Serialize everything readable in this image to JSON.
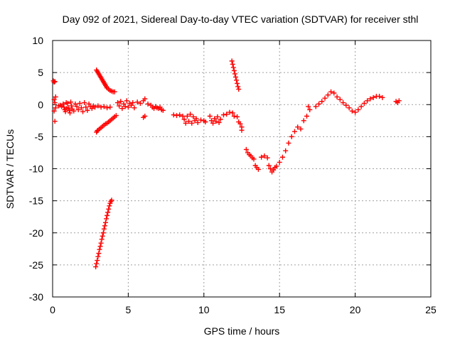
{
  "chart_data": {
    "type": "scatter",
    "title": "Day 092 of 2021, Sidereal Day-to-day VTEC variation (SDTVAR) for receiver sthl",
    "xlabel": "GPS time / hours",
    "ylabel": "SDTVAR / TECUs",
    "xlim": [
      0,
      25
    ],
    "ylim": [
      -30,
      10
    ],
    "xticks": [
      0,
      5,
      10,
      15,
      20,
      25
    ],
    "yticks": [
      -30,
      -25,
      -20,
      -15,
      -10,
      -5,
      0,
      5,
      10
    ],
    "xtick_labels": [
      "0",
      "5",
      "10",
      "15",
      "20",
      "25"
    ],
    "ytick_labels": [
      "-30",
      "-25",
      "-20",
      "-15",
      "-10",
      "-5",
      "0",
      "5",
      "10"
    ],
    "grid": true,
    "marker": "+",
    "color": "#ff0000",
    "series": [
      {
        "name": "SDTVAR",
        "points": [
          [
            0.05,
            3.7
          ],
          [
            0.1,
            3.5
          ],
          [
            0.15,
            3.6
          ],
          [
            0.1,
            0.8
          ],
          [
            0.15,
            0.3
          ],
          [
            0.2,
            -0.5
          ],
          [
            0.1,
            -1.0
          ],
          [
            0.15,
            -2.6
          ],
          [
            0.2,
            1.2
          ],
          [
            0.4,
            -0.2
          ],
          [
            0.5,
            -0.1
          ],
          [
            0.6,
            -0.3
          ],
          [
            0.7,
            0.1
          ],
          [
            0.75,
            -0.4
          ],
          [
            0.8,
            -0.8
          ],
          [
            0.85,
            -1.1
          ],
          [
            0.9,
            0.3
          ],
          [
            0.95,
            -0.6
          ],
          [
            1.0,
            0.2
          ],
          [
            1.05,
            -0.5
          ],
          [
            1.1,
            -0.9
          ],
          [
            1.15,
            -1.3
          ],
          [
            1.2,
            0.4
          ],
          [
            1.25,
            -0.2
          ],
          [
            1.3,
            -0.7
          ],
          [
            1.4,
            -1.0
          ],
          [
            1.5,
            0.1
          ],
          [
            1.6,
            -0.3
          ],
          [
            1.7,
            -0.8
          ],
          [
            1.8,
            0.2
          ],
          [
            1.9,
            -0.5
          ],
          [
            2.0,
            -1.1
          ],
          [
            2.1,
            0.3
          ],
          [
            2.2,
            -0.4
          ],
          [
            2.3,
            -0.9
          ],
          [
            2.4,
            0.1
          ],
          [
            2.5,
            -0.3
          ],
          [
            2.6,
            -0.6
          ],
          [
            2.7,
            -0.2
          ],
          [
            2.8,
            -0.4
          ],
          [
            3.0,
            -0.2
          ],
          [
            3.2,
            -0.4
          ],
          [
            3.4,
            -0.3
          ],
          [
            3.6,
            -0.5
          ],
          [
            3.8,
            -0.4
          ],
          [
            2.9,
            5.4
          ],
          [
            2.95,
            5.2
          ],
          [
            3.0,
            5.0
          ],
          [
            3.05,
            4.8
          ],
          [
            3.1,
            4.6
          ],
          [
            3.15,
            4.4
          ],
          [
            3.2,
            4.2
          ],
          [
            3.25,
            4.0
          ],
          [
            3.3,
            3.8
          ],
          [
            3.35,
            3.6
          ],
          [
            3.4,
            3.4
          ],
          [
            3.45,
            3.2
          ],
          [
            3.5,
            3.0
          ],
          [
            3.55,
            2.8
          ],
          [
            3.6,
            2.6
          ],
          [
            3.7,
            2.4
          ],
          [
            3.8,
            2.2
          ],
          [
            3.9,
            2.1
          ],
          [
            4.0,
            2.0
          ],
          [
            4.1,
            2.0
          ],
          [
            2.9,
            -4.3
          ],
          [
            2.95,
            -4.1
          ],
          [
            3.0,
            -4.0
          ],
          [
            3.1,
            -3.8
          ],
          [
            3.2,
            -3.6
          ],
          [
            3.3,
            -3.4
          ],
          [
            3.4,
            -3.2
          ],
          [
            3.5,
            -3.0
          ],
          [
            3.6,
            -2.9
          ],
          [
            3.7,
            -2.7
          ],
          [
            3.8,
            -2.5
          ],
          [
            3.9,
            -2.3
          ],
          [
            4.0,
            -2.1
          ],
          [
            4.1,
            -1.9
          ],
          [
            4.2,
            -1.7
          ],
          [
            2.85,
            -25.3
          ],
          [
            2.9,
            -24.8
          ],
          [
            2.95,
            -24.3
          ],
          [
            3.0,
            -23.7
          ],
          [
            3.05,
            -23.2
          ],
          [
            3.1,
            -22.6
          ],
          [
            3.15,
            -22.1
          ],
          [
            3.2,
            -21.6
          ],
          [
            3.25,
            -21.0
          ],
          [
            3.3,
            -20.5
          ],
          [
            3.35,
            -20.0
          ],
          [
            3.4,
            -19.4
          ],
          [
            3.45,
            -18.9
          ],
          [
            3.5,
            -18.4
          ],
          [
            3.55,
            -17.8
          ],
          [
            3.6,
            -17.3
          ],
          [
            3.65,
            -16.8
          ],
          [
            3.7,
            -16.3
          ],
          [
            3.75,
            -15.8
          ],
          [
            3.8,
            -15.4
          ],
          [
            3.85,
            -15.1
          ],
          [
            3.9,
            -14.9
          ],
          [
            4.3,
            0.3
          ],
          [
            4.4,
            -0.2
          ],
          [
            4.5,
            0.5
          ],
          [
            4.6,
            -0.6
          ],
          [
            4.7,
            0.1
          ],
          [
            4.8,
            -0.3
          ],
          [
            4.9,
            0.6
          ],
          [
            5.0,
            -0.4
          ],
          [
            5.1,
            0.2
          ],
          [
            5.2,
            -0.1
          ],
          [
            5.3,
            0.3
          ],
          [
            5.4,
            -0.5
          ],
          [
            5.6,
            0.4
          ],
          [
            5.8,
            0.2
          ],
          [
            6.0,
            0.6
          ],
          [
            6.1,
            0.9
          ],
          [
            6.0,
            -2.0
          ],
          [
            6.1,
            -1.8
          ],
          [
            6.3,
            0.1
          ],
          [
            6.5,
            -0.1
          ],
          [
            6.6,
            -0.4
          ],
          [
            6.7,
            -0.6
          ],
          [
            6.8,
            -0.3
          ],
          [
            6.9,
            -0.5
          ],
          [
            7.0,
            -0.6
          ],
          [
            7.1,
            -0.4
          ],
          [
            7.2,
            -0.8
          ],
          [
            7.3,
            -0.9
          ],
          [
            8.0,
            -1.6
          ],
          [
            8.2,
            -1.7
          ],
          [
            8.4,
            -1.6
          ],
          [
            8.6,
            -1.8
          ],
          [
            8.7,
            -2.3
          ],
          [
            8.8,
            -2.9
          ],
          [
            8.9,
            -1.8
          ],
          [
            9.0,
            -2.6
          ],
          [
            9.1,
            -1.5
          ],
          [
            9.2,
            -2.9
          ],
          [
            9.3,
            -1.9
          ],
          [
            9.4,
            -2.5
          ],
          [
            9.5,
            -2.2
          ],
          [
            9.6,
            -2.8
          ],
          [
            9.8,
            -2.4
          ],
          [
            10.0,
            -2.5
          ],
          [
            10.1,
            -2.7
          ],
          [
            10.4,
            -1.8
          ],
          [
            10.5,
            -2.5
          ],
          [
            10.6,
            -2.9
          ],
          [
            10.7,
            -2.2
          ],
          [
            10.8,
            -2.6
          ],
          [
            10.9,
            -1.9
          ],
          [
            11.0,
            -2.8
          ],
          [
            11.1,
            -2.3
          ],
          [
            11.3,
            -1.6
          ],
          [
            11.5,
            -1.5
          ],
          [
            11.7,
            -1.2
          ],
          [
            11.9,
            -1.3
          ],
          [
            12.0,
            -1.8
          ],
          [
            12.2,
            -1.9
          ],
          [
            12.3,
            -2.7
          ],
          [
            12.4,
            -3.0
          ],
          [
            12.5,
            -3.5
          ],
          [
            12.5,
            -4.0
          ],
          [
            11.85,
            6.8
          ],
          [
            11.9,
            6.3
          ],
          [
            11.95,
            5.8
          ],
          [
            12.0,
            5.3
          ],
          [
            12.05,
            4.8
          ],
          [
            12.1,
            4.3
          ],
          [
            12.15,
            3.8
          ],
          [
            12.2,
            3.3
          ],
          [
            12.25,
            2.8
          ],
          [
            12.3,
            2.4
          ],
          [
            12.8,
            -7.0
          ],
          [
            12.9,
            -7.5
          ],
          [
            13.0,
            -7.8
          ],
          [
            13.1,
            -8.0
          ],
          [
            13.2,
            -8.3
          ],
          [
            13.3,
            -8.5
          ],
          [
            13.4,
            -9.5
          ],
          [
            13.5,
            -9.8
          ],
          [
            13.6,
            -10.1
          ],
          [
            13.8,
            -8.2
          ],
          [
            14.0,
            -8.0
          ],
          [
            14.2,
            -8.3
          ],
          [
            14.3,
            -9.5
          ],
          [
            14.4,
            -10.0
          ],
          [
            14.5,
            -10.5
          ],
          [
            14.6,
            -10.2
          ],
          [
            14.7,
            -9.8
          ],
          [
            14.8,
            -9.6
          ],
          [
            15.0,
            -9.0
          ],
          [
            15.2,
            -8.2
          ],
          [
            15.4,
            -7.2
          ],
          [
            15.6,
            -6.0
          ],
          [
            15.8,
            -5.0
          ],
          [
            16.0,
            -4.2
          ],
          [
            16.2,
            -3.5
          ],
          [
            16.4,
            -3.8
          ],
          [
            16.6,
            -2.5
          ],
          [
            16.8,
            -1.8
          ],
          [
            17.0,
            -0.8
          ],
          [
            16.9,
            -0.3
          ],
          [
            17.4,
            -0.3
          ],
          [
            17.6,
            0.1
          ],
          [
            17.8,
            0.5
          ],
          [
            18.0,
            1.0
          ],
          [
            18.2,
            1.5
          ],
          [
            18.4,
            2.0
          ],
          [
            18.6,
            1.8
          ],
          [
            18.8,
            1.2
          ],
          [
            19.0,
            0.8
          ],
          [
            19.2,
            0.3
          ],
          [
            19.4,
            -0.1
          ],
          [
            19.6,
            -0.5
          ],
          [
            19.8,
            -1.0
          ],
          [
            20.0,
            -1.2
          ],
          [
            20.2,
            -0.8
          ],
          [
            20.4,
            -0.3
          ],
          [
            20.6,
            0.2
          ],
          [
            20.8,
            0.6
          ],
          [
            21.0,
            0.9
          ],
          [
            21.2,
            1.1
          ],
          [
            21.4,
            1.3
          ],
          [
            21.6,
            1.3
          ],
          [
            21.8,
            1.1
          ],
          [
            22.7,
            0.5
          ],
          [
            22.8,
            0.3
          ],
          [
            22.9,
            0.6
          ]
        ]
      }
    ]
  }
}
